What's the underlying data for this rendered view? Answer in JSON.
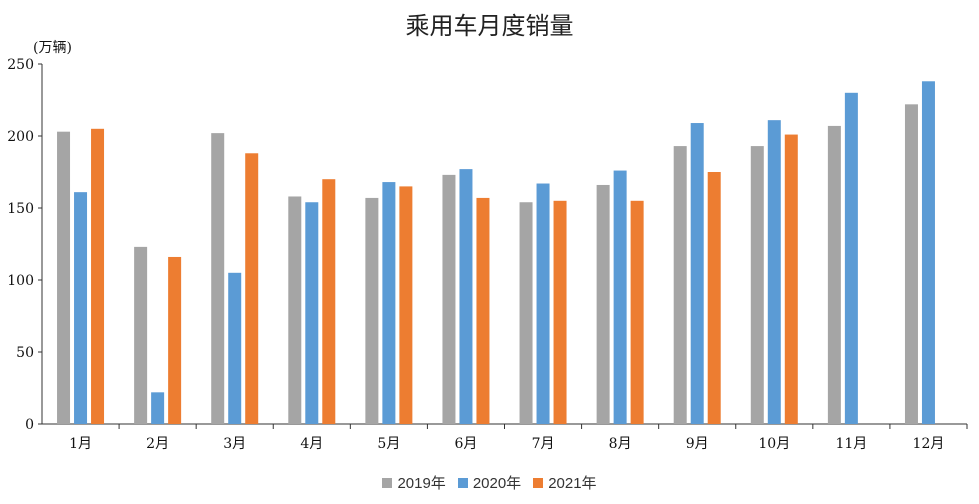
{
  "chart_data": {
    "type": "bar",
    "title": "乘用车月度销量",
    "unit_label": "(万辆)",
    "categories": [
      "1月",
      "2月",
      "3月",
      "4月",
      "5月",
      "6月",
      "7月",
      "8月",
      "9月",
      "10月",
      "11月",
      "12月"
    ],
    "ylim": [
      0,
      250
    ],
    "yticks": [
      0,
      50,
      100,
      150,
      200,
      250
    ],
    "grid": false,
    "legend_position": "bottom",
    "series": [
      {
        "name": "2019年",
        "color": "#a5a5a5",
        "values": [
          203,
          123,
          202,
          158,
          157,
          173,
          154,
          166,
          193,
          193,
          207,
          222
        ]
      },
      {
        "name": "2020年",
        "color": "#5b9bd5",
        "values": [
          161,
          22,
          105,
          154,
          168,
          177,
          167,
          176,
          209,
          211,
          230,
          238
        ]
      },
      {
        "name": "2021年",
        "color": "#ed7d31",
        "values": [
          205,
          116,
          188,
          170,
          165,
          157,
          155,
          155,
          175,
          201,
          null,
          null
        ]
      }
    ]
  }
}
